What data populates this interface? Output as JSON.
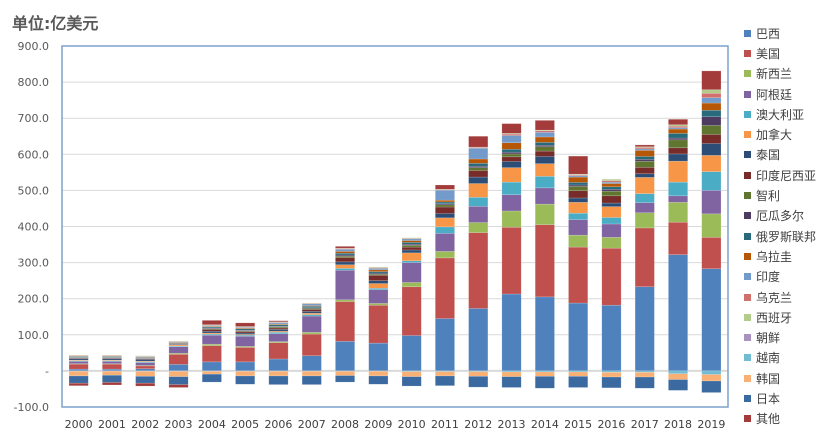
{
  "chart_data": {
    "type": "bar",
    "stacked": true,
    "title": "单位:亿美元",
    "xlabel": "",
    "ylabel": "",
    "ylim": [
      -100,
      900
    ],
    "yticks": [
      {
        "value": 900,
        "label": "900.0"
      },
      {
        "value": 800,
        "label": "800.0"
      },
      {
        "value": 700,
        "label": "700.0"
      },
      {
        "value": 600,
        "label": "600.0"
      },
      {
        "value": 500,
        "label": "500.0"
      },
      {
        "value": 400,
        "label": "400.0"
      },
      {
        "value": 300,
        "label": "300.0"
      },
      {
        "value": 200,
        "label": "200.0"
      },
      {
        "value": 100,
        "label": "100.0"
      },
      {
        "value": 0,
        "label": "-"
      },
      {
        "value": -100,
        "label": "-100.0"
      }
    ],
    "grid": true,
    "legend_position": "right",
    "categories": [
      "2000",
      "2001",
      "2002",
      "2003",
      "2004",
      "2005",
      "2006",
      "2007",
      "2008",
      "2009",
      "2010",
      "2011",
      "2012",
      "2013",
      "2014",
      "2015",
      "2016",
      "2017",
      "2018",
      "2019"
    ],
    "series": [
      {
        "name": "巴西",
        "color": "#4F81BD",
        "values": [
          5,
          5,
          6,
          18,
          25,
          25,
          33,
          42,
          82,
          77,
          98,
          145,
          173,
          213,
          205,
          188,
          182,
          233,
          322,
          283
        ]
      },
      {
        "name": "美国",
        "color": "#C0504D",
        "values": [
          14,
          14,
          8,
          28,
          45,
          40,
          45,
          60,
          110,
          105,
          135,
          168,
          210,
          185,
          200,
          155,
          158,
          163,
          90,
          87
        ]
      },
      {
        "name": "新西兰",
        "color": "#9BBB59",
        "values": [
          1,
          1,
          1,
          3,
          4,
          3,
          3,
          5,
          5,
          5,
          12,
          18,
          28,
          45,
          57,
          33,
          30,
          42,
          55,
          65
        ]
      },
      {
        "name": "阿根廷",
        "color": "#8064A2",
        "values": [
          6,
          6,
          8,
          18,
          25,
          28,
          22,
          45,
          82,
          38,
          55,
          50,
          45,
          45,
          45,
          43,
          37,
          28,
          18,
          65
        ]
      },
      {
        "name": "澳大利亚",
        "color": "#4BACC6",
        "values": [
          2,
          2,
          2,
          2,
          3,
          3,
          4,
          4,
          5,
          4,
          5,
          18,
          25,
          35,
          32,
          18,
          18,
          25,
          38,
          52
        ]
      },
      {
        "name": "加拿大",
        "color": "#F79646",
        "values": [
          2,
          2,
          2,
          3,
          3,
          2,
          3,
          4,
          10,
          13,
          22,
          25,
          38,
          40,
          35,
          30,
          30,
          45,
          58,
          45
        ]
      },
      {
        "name": "泰国",
        "color": "#2C4D75",
        "values": [
          4,
          4,
          5,
          2,
          5,
          4,
          5,
          5,
          8,
          8,
          8,
          12,
          18,
          17,
          20,
          12,
          10,
          10,
          20,
          33
        ]
      },
      {
        "name": "印度尼西亚",
        "color": "#772C2A",
        "values": [
          2,
          2,
          2,
          2,
          5,
          4,
          4,
          5,
          12,
          15,
          8,
          18,
          18,
          13,
          15,
          20,
          20,
          18,
          17,
          25
        ]
      },
      {
        "name": "智利",
        "color": "#5F7530",
        "values": [
          1,
          1,
          1,
          1,
          2,
          2,
          3,
          3,
          4,
          3,
          5,
          6,
          8,
          8,
          12,
          12,
          13,
          17,
          22,
          25
        ]
      },
      {
        "name": "厄瓜多尔",
        "color": "#4D3B62",
        "values": [
          1,
          1,
          1,
          1,
          2,
          2,
          2,
          2,
          3,
          3,
          3,
          3,
          4,
          5,
          4,
          4,
          5,
          5,
          5,
          24
        ]
      },
      {
        "name": "俄罗斯联邦",
        "color": "#276A7C",
        "values": [
          2,
          2,
          2,
          1,
          3,
          4,
          4,
          4,
          5,
          4,
          5,
          5,
          8,
          8,
          8,
          7,
          7,
          8,
          13,
          18
        ]
      },
      {
        "name": "乌拉圭",
        "color": "#B65708",
        "values": [
          1,
          1,
          1,
          1,
          2,
          2,
          2,
          2,
          5,
          5,
          5,
          5,
          12,
          18,
          15,
          15,
          9,
          17,
          12,
          20
        ]
      },
      {
        "name": "印度",
        "color": "#729ACA",
        "values": [
          1,
          1,
          1,
          1,
          2,
          2,
          4,
          5,
          6,
          4,
          5,
          28,
          30,
          20,
          13,
          4,
          4,
          4,
          4,
          15
        ]
      },
      {
        "name": "乌克兰",
        "color": "#D06F6B",
        "values": [
          1,
          1,
          1,
          1,
          1,
          1,
          1,
          1,
          2,
          2,
          1,
          1,
          2,
          4,
          4,
          2,
          4,
          4,
          4,
          12
        ]
      },
      {
        "name": "西班牙",
        "color": "#B3CB8B",
        "values": [
          1,
          1,
          1,
          1,
          1,
          1,
          1,
          1,
          1,
          2,
          2,
          1,
          1,
          2,
          2,
          2,
          4,
          2,
          4,
          10
        ]
      },
      {
        "name": "朝鲜",
        "color": "#A793BE",
        "values": [
          0,
          0,
          0,
          0,
          0,
          0,
          0,
          0,
          0,
          0,
          0,
          0,
          0,
          0,
          0,
          0,
          0,
          0,
          0,
          0
        ]
      },
      {
        "name": "越南",
        "color": "#71BCD3",
        "values": [
          -1,
          -1,
          -1,
          -1,
          -1,
          -1,
          -1,
          -1,
          -1,
          -1,
          -2,
          -2,
          -2,
          -3,
          -3,
          -3,
          -4,
          -4,
          -8,
          -10
        ]
      },
      {
        "name": "韩国",
        "color": "#F9B074",
        "values": [
          -13,
          -11,
          -14,
          -15,
          -8,
          -13,
          -13,
          -13,
          -12,
          -13,
          -14,
          -12,
          -13,
          -13,
          -12,
          -12,
          -13,
          -13,
          -16,
          -18
        ]
      },
      {
        "name": "日本",
        "color": "#3A6AA0",
        "values": [
          -20,
          -20,
          -19,
          -22,
          -22,
          -23,
          -24,
          -24,
          -18,
          -23,
          -26,
          -27,
          -30,
          -30,
          -33,
          -31,
          -30,
          -31,
          -30,
          -32
        ]
      },
      {
        "name": "其他",
        "color": "#A23B3A",
        "values": [
          -7,
          -7,
          -8,
          -8,
          12,
          10,
          3,
          0,
          5,
          0,
          0,
          12,
          30,
          27,
          27,
          50,
          0,
          5,
          15,
          52
        ]
      }
    ]
  }
}
